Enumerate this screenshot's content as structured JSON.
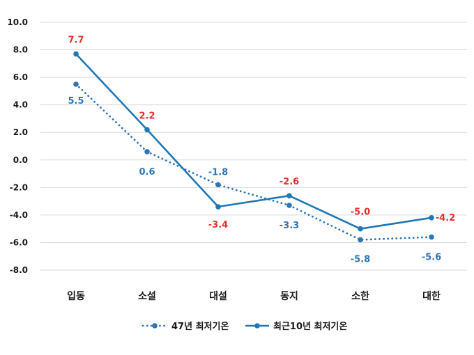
{
  "chart_data": {
    "type": "line",
    "title": "",
    "xlabel": "",
    "ylabel": "",
    "categories": [
      "입동",
      "소설",
      "대설",
      "동지",
      "소한",
      "대한"
    ],
    "ylim": [
      -8.0,
      10.0
    ],
    "yticks": [
      "10.0",
      "8.0",
      "6.0",
      "4.0",
      "2.0",
      "0.0",
      "-2.0",
      "-4.0",
      "-6.0",
      "-8.0"
    ],
    "grid": true,
    "legend_position": "bottom",
    "series": [
      {
        "name": "47년 최저기온",
        "style": "dotted",
        "color": "#2e75b6",
        "label_color": "#2e75b6",
        "values": [
          5.5,
          0.6,
          -1.8,
          -3.3,
          -5.8,
          -5.6
        ],
        "labels": [
          "5.5",
          "0.6",
          "-1.8",
          "-3.3",
          "-5.8",
          "-5.6"
        ]
      },
      {
        "name": "최근10년 최저기온",
        "style": "solid",
        "color": "#1f77b4",
        "label_color": "#e0312f",
        "values": [
          7.7,
          2.2,
          -3.4,
          -2.6,
          -5.0,
          -4.2
        ],
        "labels": [
          "7.7",
          "2.2",
          "-3.4",
          "-2.6",
          "-5.0",
          "-4.2"
        ]
      }
    ]
  }
}
